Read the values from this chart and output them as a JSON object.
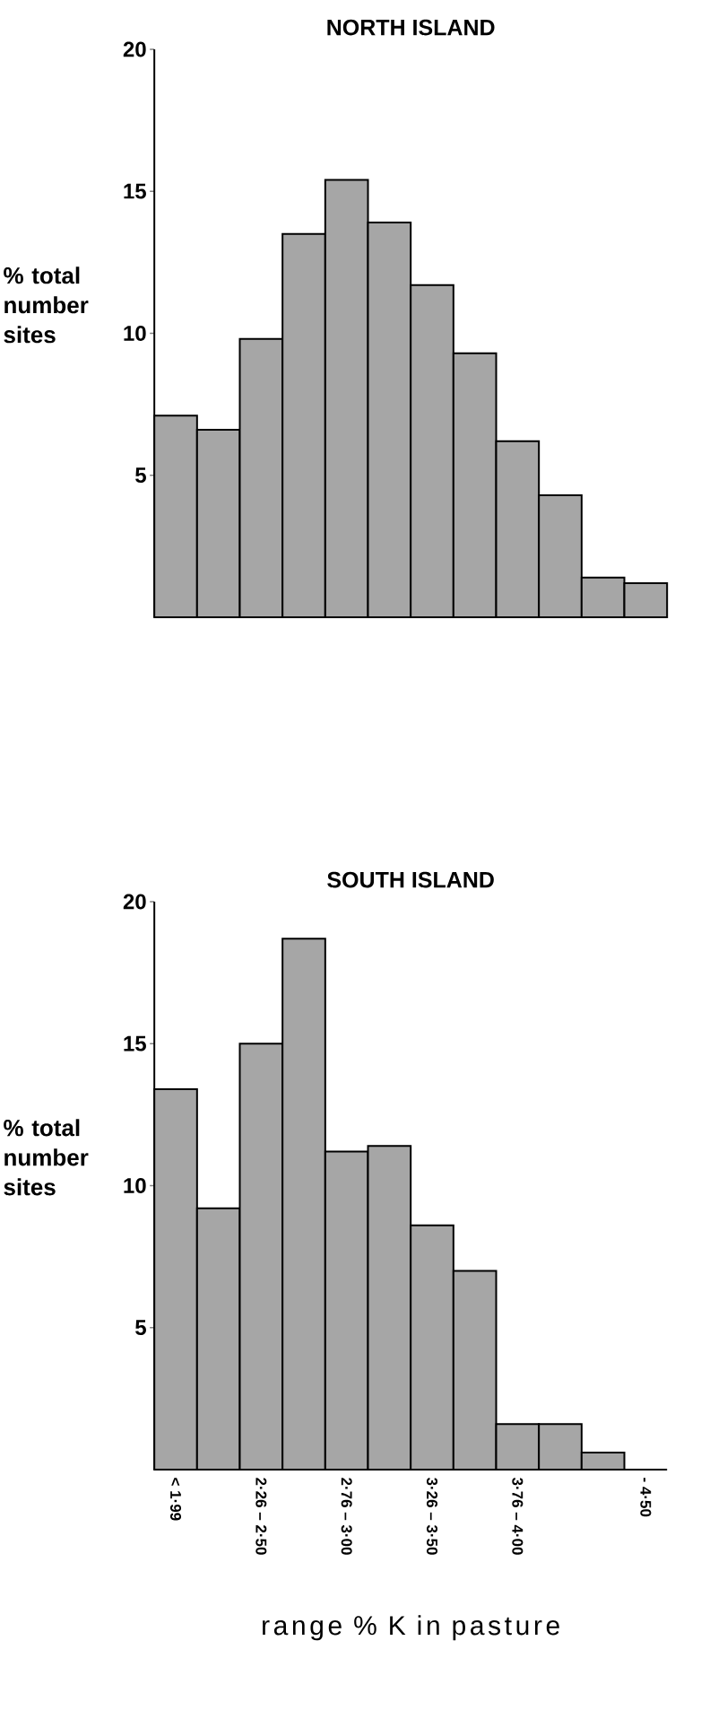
{
  "chart_data": [
    {
      "type": "bar",
      "title": "NORTH ISLAND",
      "ylabel": "% total number sites",
      "categories": [
        null,
        null,
        null,
        null,
        null,
        null,
        null,
        null,
        null,
        null,
        null,
        null
      ],
      "values": [
        7.1,
        6.6,
        9.8,
        13.5,
        15.4,
        13.9,
        11.7,
        9.3,
        6.2,
        4.3,
        1.4,
        1.2
      ],
      "color": "#a6a6a6",
      "ylim": [
        0,
        20
      ],
      "yticks": [
        5,
        10,
        15,
        20
      ]
    },
    {
      "type": "bar",
      "title": "SOUTH ISLAND",
      "ylabel": "% total number sites",
      "xlabel": "range % K in pasture",
      "categories": [
        "< 1·99",
        null,
        "2·26 – 2·50",
        null,
        "2·76 – 3·00",
        null,
        "3·26 – 3·50",
        null,
        "3·76 – 4·00",
        null,
        null,
        "- 4·50"
      ],
      "values": [
        13.4,
        9.2,
        15.0,
        18.7,
        11.2,
        11.4,
        8.6,
        7.0,
        1.6,
        1.6,
        0.6,
        null
      ],
      "color": "#a6a6a6",
      "ylim": [
        0,
        20
      ],
      "yticks": [
        5,
        10,
        15,
        20
      ]
    }
  ]
}
